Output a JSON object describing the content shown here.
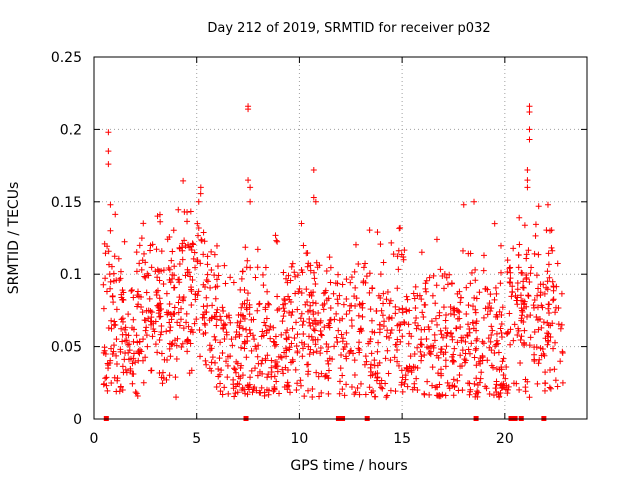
{
  "chart_data": {
    "type": "scatter",
    "title": "Day 212 of 2019, SRMTID for receiver p032",
    "xlabel": "GPS time / hours",
    "ylabel": "SRMTID / TECUs",
    "xlim": [
      0,
      24
    ],
    "ylim": [
      0,
      0.25
    ],
    "x_ticks": [
      0,
      5,
      10,
      15,
      20
    ],
    "x_tick_labels": [
      "0",
      "5",
      "10",
      "15",
      "20"
    ],
    "y_ticks": [
      0,
      0.05,
      0.1,
      0.15,
      0.2,
      0.25
    ],
    "y_tick_labels": [
      "0",
      "0.05",
      "0.1",
      "0.15",
      "0.2",
      "0.25"
    ],
    "grid": true,
    "marker": "+",
    "color": "#ff0000",
    "outage_markers_x": [
      0.6,
      7.4,
      11.9,
      12.1,
      13.3,
      18.6,
      20.3,
      20.5,
      20.8,
      21.9
    ],
    "peaks": [
      {
        "x": 0.7,
        "y": 0.198
      },
      {
        "x": 0.7,
        "y": 0.185
      },
      {
        "x": 0.7,
        "y": 0.176
      },
      {
        "x": 0.8,
        "y": 0.148
      },
      {
        "x": 0.8,
        "y": 0.13
      },
      {
        "x": 4.4,
        "y": 0.143
      },
      {
        "x": 5.2,
        "y": 0.16
      },
      {
        "x": 5.1,
        "y": 0.15
      },
      {
        "x": 7.5,
        "y": 0.216
      },
      {
        "x": 7.5,
        "y": 0.214
      },
      {
        "x": 7.5,
        "y": 0.165
      },
      {
        "x": 7.6,
        "y": 0.16
      },
      {
        "x": 7.6,
        "y": 0.15
      },
      {
        "x": 10.7,
        "y": 0.172
      },
      {
        "x": 10.7,
        "y": 0.153
      },
      {
        "x": 10.8,
        "y": 0.15
      },
      {
        "x": 10.1,
        "y": 0.135
      },
      {
        "x": 14.9,
        "y": 0.132
      },
      {
        "x": 18.0,
        "y": 0.148
      },
      {
        "x": 18.5,
        "y": 0.15
      },
      {
        "x": 20.7,
        "y": 0.139
      },
      {
        "x": 21.2,
        "y": 0.216
      },
      {
        "x": 21.2,
        "y": 0.212
      },
      {
        "x": 21.2,
        "y": 0.2
      },
      {
        "x": 21.2,
        "y": 0.193
      },
      {
        "x": 21.1,
        "y": 0.172
      },
      {
        "x": 21.1,
        "y": 0.165
      },
      {
        "x": 21.1,
        "y": 0.16
      },
      {
        "x": 22.1,
        "y": 0.148
      },
      {
        "x": 22.2,
        "y": 0.13
      },
      {
        "x": 21.2,
        "y": 0.015
      },
      {
        "x": 21.0,
        "y": 0.022
      },
      {
        "x": 1.3,
        "y": 0.022
      },
      {
        "x": 1.4,
        "y": 0.02
      },
      {
        "x": 8.1,
        "y": 0.018
      }
    ],
    "baseline": [
      {
        "x": 0.5,
        "y": 0.07
      },
      {
        "x": 1.0,
        "y": 0.065
      },
      {
        "x": 1.5,
        "y": 0.055
      },
      {
        "x": 2.0,
        "y": 0.07
      },
      {
        "x": 2.5,
        "y": 0.08
      },
      {
        "x": 3.0,
        "y": 0.085
      },
      {
        "x": 3.5,
        "y": 0.07
      },
      {
        "x": 4.0,
        "y": 0.085
      },
      {
        "x": 4.5,
        "y": 0.095
      },
      {
        "x": 5.0,
        "y": 0.095
      },
      {
        "x": 5.5,
        "y": 0.075
      },
      {
        "x": 6.0,
        "y": 0.06
      },
      {
        "x": 6.5,
        "y": 0.045
      },
      {
        "x": 7.0,
        "y": 0.045
      },
      {
        "x": 7.5,
        "y": 0.07
      },
      {
        "x": 8.0,
        "y": 0.05
      },
      {
        "x": 8.5,
        "y": 0.05
      },
      {
        "x": 9.0,
        "y": 0.055
      },
      {
        "x": 9.5,
        "y": 0.065
      },
      {
        "x": 10.0,
        "y": 0.055
      },
      {
        "x": 10.5,
        "y": 0.07
      },
      {
        "x": 11.0,
        "y": 0.07
      },
      {
        "x": 11.5,
        "y": 0.06
      },
      {
        "x": 12.0,
        "y": 0.055
      },
      {
        "x": 12.5,
        "y": 0.06
      },
      {
        "x": 13.0,
        "y": 0.065
      },
      {
        "x": 13.5,
        "y": 0.055
      },
      {
        "x": 14.0,
        "y": 0.055
      },
      {
        "x": 14.5,
        "y": 0.06
      },
      {
        "x": 15.0,
        "y": 0.065
      },
      {
        "x": 15.5,
        "y": 0.055
      },
      {
        "x": 16.0,
        "y": 0.055
      },
      {
        "x": 16.5,
        "y": 0.055
      },
      {
        "x": 17.0,
        "y": 0.055
      },
      {
        "x": 17.5,
        "y": 0.05
      },
      {
        "x": 18.0,
        "y": 0.065
      },
      {
        "x": 18.5,
        "y": 0.06
      },
      {
        "x": 19.0,
        "y": 0.055
      },
      {
        "x": 19.5,
        "y": 0.05
      },
      {
        "x": 20.0,
        "y": 0.045
      },
      {
        "x": 20.5,
        "y": 0.075
      },
      {
        "x": 21.0,
        "y": 0.08
      },
      {
        "x": 21.5,
        "y": 0.085
      },
      {
        "x": 22.0,
        "y": 0.06
      },
      {
        "x": 22.5,
        "y": 0.055
      },
      {
        "x": 22.8,
        "y": 0.055
      }
    ],
    "baseline_spread": 0.03,
    "data_start_hour": 0.45,
    "data_end_hour": 22.85,
    "dense_point_count": 1500
  }
}
